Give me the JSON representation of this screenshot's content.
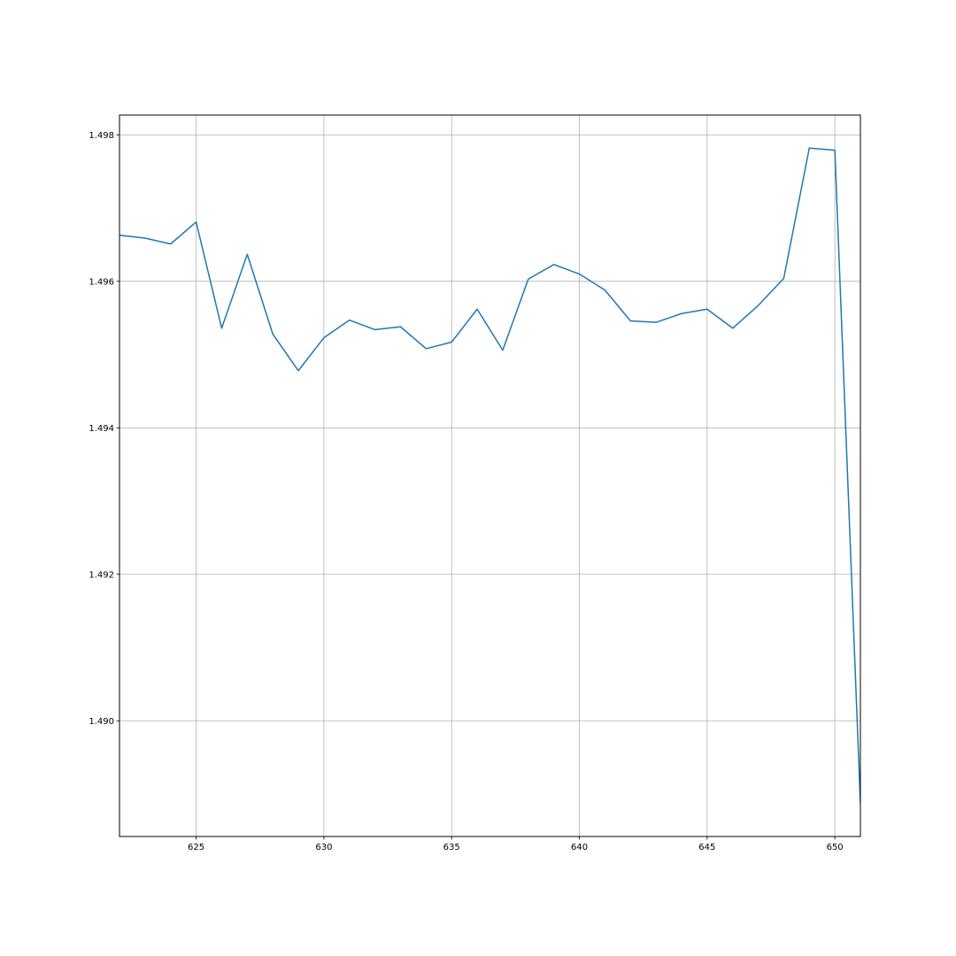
{
  "chart_data": {
    "type": "line",
    "title": "",
    "xlabel": "",
    "ylabel": "",
    "grid": true,
    "xlim": [
      622,
      651
    ],
    "ylim": [
      1.48842,
      1.49827
    ],
    "x_ticks": [
      625,
      630,
      635,
      640,
      645,
      650
    ],
    "y_ticks": [
      1.49,
      1.492,
      1.494,
      1.496,
      1.498
    ],
    "x_tick_labels": [
      "625",
      "630",
      "635",
      "640",
      "645",
      "650"
    ],
    "y_tick_labels": [
      "1.490",
      "1.492",
      "1.494",
      "1.496",
      "1.498"
    ],
    "series": [
      {
        "color": "#1f77b4",
        "x": [
          622,
          623,
          624,
          625,
          626,
          627,
          628,
          629,
          630,
          631,
          632,
          633,
          634,
          635,
          636,
          637,
          638,
          639,
          640,
          641,
          642,
          643,
          644,
          645,
          646,
          647,
          648,
          649,
          650,
          651
        ],
        "y": [
          1.49663,
          1.49659,
          1.49651,
          1.49681,
          1.49536,
          1.49637,
          1.49528,
          1.49478,
          1.49523,
          1.49547,
          1.49534,
          1.49538,
          1.49508,
          1.49517,
          1.49562,
          1.49506,
          1.49603,
          1.49623,
          1.4961,
          1.49588,
          1.49546,
          1.49544,
          1.49556,
          1.49562,
          1.49536,
          1.49567,
          1.49604,
          1.49782,
          1.49779,
          1.48887
        ]
      }
    ]
  },
  "colors": {
    "background": "#ffffff",
    "axes": "#000000",
    "grid": "#b0b0b0",
    "line": "#1f77b4"
  }
}
